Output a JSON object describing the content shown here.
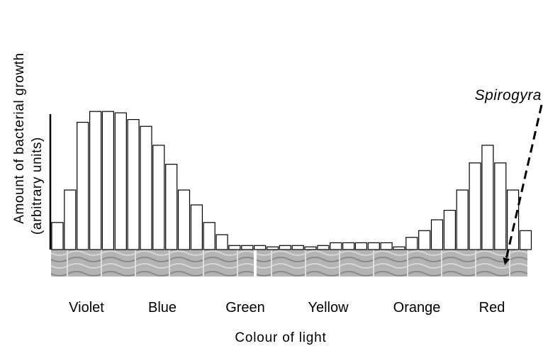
{
  "chart_data": {
    "type": "bar",
    "xlabel": "Colour of light",
    "ylabel_lines": [
      "Amount of bacterial growth",
      "(arbitrary units)"
    ],
    "ylim": [
      0,
      10
    ],
    "values": [
      2.0,
      4.4,
      9.4,
      10.2,
      10.2,
      10.1,
      9.6,
      9.1,
      7.7,
      6.3,
      4.4,
      3.3,
      2.0,
      1.1,
      0.3,
      0.3,
      0.3,
      0.2,
      0.3,
      0.3,
      0.2,
      0.3,
      0.5,
      0.5,
      0.5,
      0.5,
      0.5,
      0.2,
      0.9,
      1.4,
      2.2,
      2.9,
      4.4,
      6.4,
      7.7,
      6.4,
      4.4,
      1.4
    ],
    "color_bands": [
      "Violet",
      "Blue",
      "Green",
      "Yellow",
      "Orange",
      "Red"
    ],
    "annotation": "Spirogyra"
  }
}
